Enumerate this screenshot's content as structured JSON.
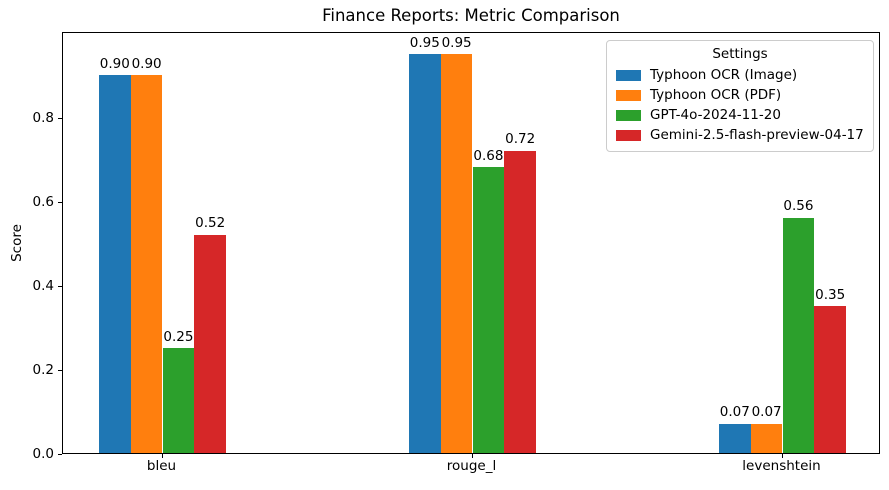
{
  "chart_data": {
    "type": "bar",
    "title": "Finance Reports: Metric Comparison",
    "xlabel": "",
    "ylabel": "Score",
    "categories": [
      "bleu",
      "rouge_l",
      "levenshtein"
    ],
    "series": [
      {
        "name": "Typhoon OCR (Image)",
        "color": "#1f77b4",
        "values": [
          0.9,
          0.95,
          0.07
        ]
      },
      {
        "name": "Typhoon OCR (PDF)",
        "color": "#ff7f0e",
        "values": [
          0.9,
          0.95,
          0.07
        ]
      },
      {
        "name": "GPT-4o-2024-11-20",
        "color": "#2ca02c",
        "values": [
          0.25,
          0.68,
          0.56
        ]
      },
      {
        "name": "Gemini-2.5-flash-preview-04-17",
        "color": "#d62728",
        "values": [
          0.52,
          0.72,
          0.35
        ]
      }
    ],
    "value_labels": [
      [
        "0.90",
        "0.95",
        "0.07"
      ],
      [
        "0.90",
        "0.95",
        "0.07"
      ],
      [
        "0.25",
        "0.68",
        "0.56"
      ],
      [
        "0.52",
        "0.72",
        "0.35"
      ]
    ],
    "ylim": [
      0.0,
      1.0
    ],
    "yticks": [
      "0.0",
      "0.2",
      "0.4",
      "0.6",
      "0.8"
    ],
    "grid": "off",
    "legend": {
      "title": "Settings",
      "position": "upper right"
    }
  }
}
